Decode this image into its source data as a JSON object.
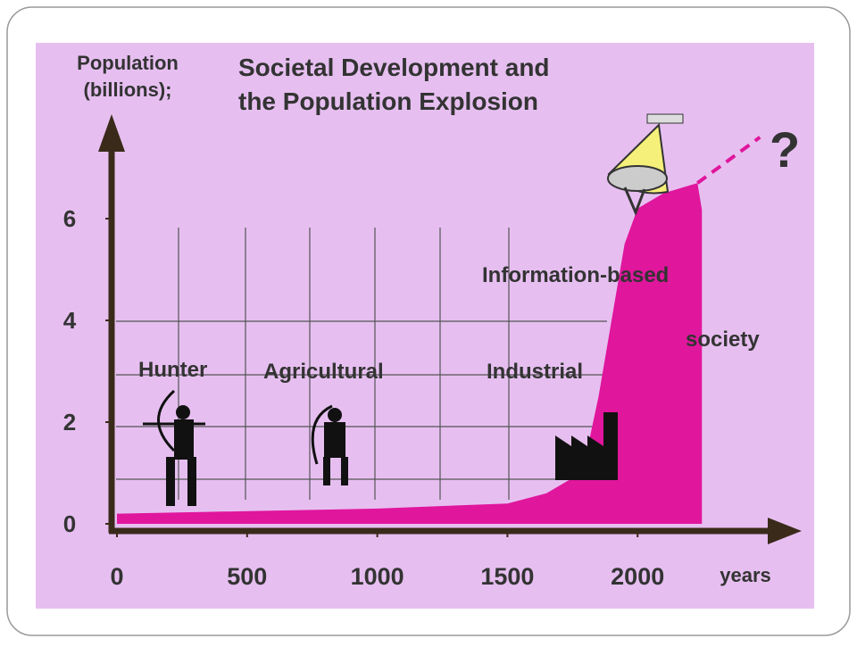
{
  "chart_data": {
    "type": "area",
    "title": [
      "Societal Development and",
      "the Population Explosion"
    ],
    "y_label": [
      "Population",
      "(billions);"
    ],
    "x_label": "years",
    "x": [
      0,
      500,
      1000,
      1500,
      1650,
      1750,
      1800,
      1850,
      1900,
      1950,
      2000,
      2100,
      2230
    ],
    "series": [
      {
        "color": "#e0169d",
        "values": [
          0.2,
          0.25,
          0.3,
          0.4,
          0.6,
          0.9,
          1.3,
          2.5,
          4.0,
          5.5,
          6.2,
          6.5,
          6.7
        ]
      }
    ],
    "projection": {
      "color": "#e0169d",
      "x": [
        2230,
        2470
      ],
      "values": [
        6.7,
        7.6
      ],
      "dashed": true
    },
    "xlim": [
      0,
      2620
    ],
    "ylim": [
      0,
      8
    ],
    "xticks": [
      0,
      500,
      1000,
      1500,
      2000
    ],
    "yticks": [
      0,
      2,
      4,
      6
    ],
    "annotations": [
      "Hunter",
      "Agricultural",
      "Industrial",
      "Information-based",
      "society",
      "?"
    ]
  }
}
